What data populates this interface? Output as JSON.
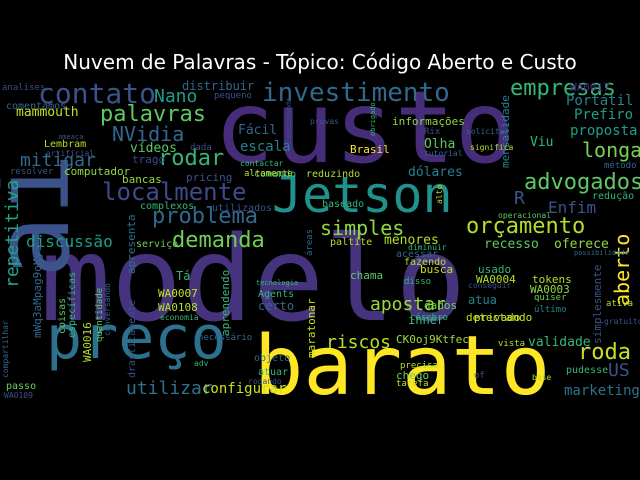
{
  "title": "Nuvem de Palavras - Tópico: Código Aberto e Custo",
  "words": [
    {
      "text": "modelo",
      "color": "#46337e"
    },
    {
      "text": "custo",
      "color": "#472c7a"
    },
    {
      "text": "ai",
      "color": "#3b528b"
    },
    {
      "text": "barato",
      "color": "#fde725"
    },
    {
      "text": "preço",
      "color": "#2c728e"
    },
    {
      "text": "Jetson",
      "color": "#21918c"
    },
    {
      "text": "investimento",
      "color": "#31688e"
    },
    {
      "text": "contato",
      "color": "#3b528b"
    },
    {
      "text": "empresas",
      "color": "#35b779"
    },
    {
      "text": "localmente",
      "color": "#3e4a89"
    },
    {
      "text": "palavras",
      "color": "#5ec962"
    },
    {
      "text": "orçamento",
      "color": "#b5de2b"
    },
    {
      "text": "advogados",
      "color": "#5ec962"
    },
    {
      "text": "problema",
      "color": "#31688e"
    },
    {
      "text": "demanda",
      "color": "#6ece58"
    },
    {
      "text": "simples",
      "color": "#90d743"
    },
    {
      "text": "rodar",
      "color": "#35b779"
    },
    {
      "text": "Nano",
      "color": "#1f9e89"
    },
    {
      "text": "NVidia",
      "color": "#31688e"
    },
    {
      "text": "repetitiva",
      "color": "#20a486"
    },
    {
      "text": "roda",
      "color": "#c8e020"
    },
    {
      "text": "aberto",
      "color": "#fde725"
    },
    {
      "text": "longa",
      "color": "#7ad151"
    },
    {
      "text": "apostar",
      "color": "#9fda3a"
    },
    {
      "text": "riscos",
      "color": "#b5de2b"
    },
    {
      "text": "utilizar",
      "color": "#2c728e"
    },
    {
      "text": "discussão",
      "color": "#1f9e89"
    },
    {
      "text": "mitigar",
      "color": "#31688e"
    },
    {
      "text": "Enfim",
      "color": "#3b528b"
    },
    {
      "text": "Portátil",
      "color": "#26828e"
    },
    {
      "text": "Prefiro",
      "color": "#1f9e89"
    },
    {
      "text": "proposta",
      "color": "#1f9e89"
    },
    {
      "text": "escala",
      "color": "#26828e"
    },
    {
      "text": "vídeos",
      "color": "#5ec962"
    },
    {
      "text": "mammouth",
      "color": "#c8e020"
    },
    {
      "text": "configurar",
      "color": "#c8e020"
    },
    {
      "text": "marketing",
      "color": "#2c728e"
    },
    {
      "text": "US",
      "color": "#3b528b"
    },
    {
      "text": "validade",
      "color": "#35b779"
    },
    {
      "text": "recesso",
      "color": "#5ec962"
    },
    {
      "text": "oferece",
      "color": "#90d743"
    },
    {
      "text": "dólares",
      "color": "#26828e"
    },
    {
      "text": "Viu",
      "color": "#35b779"
    },
    {
      "text": "Olha",
      "color": "#5ec962"
    },
    {
      "text": "menores",
      "color": "#b5de2b"
    },
    {
      "text": "chama",
      "color": "#5ec962"
    },
    {
      "text": "R",
      "color": "#3b528b"
    },
    {
      "text": "Fácil",
      "color": "#31688e"
    },
    {
      "text": "distribuir",
      "color": "#31688e"
    },
    {
      "text": "trago",
      "color": "#3e4a89"
    },
    {
      "text": "pricing",
      "color": "#3b528b"
    },
    {
      "text": "inner",
      "color": "#35b779"
    },
    {
      "text": "atua",
      "color": "#26828e"
    },
    {
      "text": "dados",
      "color": "#6ece58"
    },
    {
      "text": "bancas",
      "color": "#90d743"
    },
    {
      "text": "apresenta",
      "color": "#2c728e"
    },
    {
      "text": "aprendendo",
      "color": "#35b779"
    },
    {
      "text": "maratonar",
      "color": "#c8e020"
    },
    {
      "text": "CK0oj9Ktfec",
      "color": "#a0da39"
    },
    {
      "text": "WA0016",
      "color": "#b5de2b"
    },
    {
      "text": "mWq3aMpag9oKy1",
      "color": "#31688e"
    },
    {
      "text": "Brasil",
      "color": "#fde725"
    },
    {
      "text": "WA0017",
      "color": "#472c7a"
    },
    {
      "text": "mensalidade",
      "color": "#26828e"
    },
    {
      "text": "tokens",
      "color": "#b5de2b"
    },
    {
      "text": "WA0003",
      "color": "#90d743"
    },
    {
      "text": "WA0004",
      "color": "#b5de2b"
    },
    {
      "text": "WA0007",
      "color": "#c8e020"
    },
    {
      "text": "WA0108",
      "color": "#b5de2b"
    },
    {
      "text": "informações",
      "color": "#90d743"
    },
    {
      "text": "computador",
      "color": "#90d743"
    },
    {
      "text": "simplesmente",
      "color": "#3b528b"
    },
    {
      "text": "detectando",
      "color": "#c8e020"
    },
    {
      "text": "usado",
      "color": "#35b779"
    },
    {
      "text": "busca",
      "color": "#c8e020"
    },
    {
      "text": "privado",
      "color": "#b5de2b"
    },
    {
      "text": "certo",
      "color": "#31688e"
    },
    {
      "text": "Agents",
      "color": "#35b779"
    },
    {
      "text": "atuar",
      "color": "#35b779"
    },
    {
      "text": "objeto",
      "color": "#31688e"
    },
    {
      "text": "drasticamente",
      "color": "#3b528b"
    },
    {
      "text": "coisas",
      "color": "#5ec962"
    },
    {
      "text": "específicas",
      "color": "#35b779"
    },
    {
      "text": "serviço",
      "color": "#6ece58"
    },
    {
      "text": "paltite",
      "color": "#b5de2b"
    },
    {
      "text": "acessar",
      "color": "#31688e"
    },
    {
      "text": "fazendo",
      "color": "#b5de2b"
    },
    {
      "text": "redução",
      "color": "#35b779"
    },
    {
      "text": "reduzindo",
      "color": "#b5de2b"
    },
    {
      "text": "comando",
      "color": "#35b779"
    },
    {
      "text": "utilizados",
      "color": "#3b528b"
    },
    {
      "text": "baseado",
      "color": "#35b779"
    },
    {
      "text": "complexos",
      "color": "#35b779"
    },
    {
      "text": "comentamos",
      "color": "#31688e"
    },
    {
      "text": "analises",
      "color": "#3e4a89"
    },
    {
      "text": "Lembram",
      "color": "#b5de2b"
    },
    {
      "text": "resolver",
      "color": "#3b528b"
    },
    {
      "text": "método",
      "color": "#31688e"
    },
    {
      "text": "Rix",
      "color": "#3b528b"
    },
    {
      "text": "pudesse",
      "color": "#35b779"
    },
    {
      "text": "chego",
      "color": "#6ece58"
    },
    {
      "text": "tarefa",
      "color": "#c8e020"
    },
    {
      "text": "precisa",
      "color": "#b5de2b"
    },
    {
      "text": "cérebro",
      "color": "#35b779"
    },
    {
      "text": "vista",
      "color": "#b5de2b"
    },
    {
      "text": "quiser",
      "color": "#6ece58"
    },
    {
      "text": "último",
      "color": "#26828e"
    },
    {
      "text": "ativa",
      "color": "#b5de2b"
    },
    {
      "text": "necessário",
      "color": "#31688e"
    },
    {
      "text": "WA0109",
      "color": "#3b528b"
    },
    {
      "text": "passo",
      "color": "#6ece58"
    },
    {
      "text": "áreas",
      "color": "#31688e"
    },
    {
      "text": "disso",
      "color": "#35b779"
    },
    {
      "text": "altamente",
      "color": "#b5de2b"
    },
    {
      "text": "dada",
      "color": "#3b528b"
    },
    {
      "text": "pequeno",
      "color": "#3b528b"
    },
    {
      "text": "provas",
      "color": "#3b528b"
    },
    {
      "text": "contactar",
      "color": "#35b779"
    },
    {
      "text": "economia",
      "color": "#35b779"
    },
    {
      "text": "gratuitos",
      "color": "#3b528b"
    },
    {
      "text": "rodando",
      "color": "#3b528b"
    },
    {
      "text": "of",
      "color": "#3b528b"
    },
    {
      "text": "base",
      "color": "#b5de2b"
    },
    {
      "text": "Tá",
      "color": "#35b779"
    },
    {
      "text": "significa",
      "color": "#b5de2b"
    },
    {
      "text": "tutorial",
      "color": "#31688e"
    },
    {
      "text": "solicitar",
      "color": "#31688e"
    },
    {
      "text": "diminuir",
      "color": "#35b779"
    },
    {
      "text": "adv",
      "color": "#35b779"
    },
    {
      "text": "tecnologia",
      "color": "#35b779"
    },
    {
      "text": "conseguir",
      "color": "#3b528b"
    },
    {
      "text": "quantidade",
      "color": "#5ec962"
    },
    {
      "text": "artificial",
      "color": "#3b528b"
    },
    {
      "text": "compartilhar",
      "color": "#31688e"
    },
    {
      "text": "ameaça",
      "color": "#3b528b"
    },
    {
      "text": "conversando",
      "color": "#31688e"
    },
    {
      "text": "operacional",
      "color": "#5ec962"
    },
    {
      "text": "alto",
      "color": "#b5de2b"
    },
    {
      "text": "possibilidade",
      "color": "#31688e"
    },
    {
      "text": "obrigado",
      "color": "#35b779"
    },
    {
      "text": "funcionando",
      "color": "#3b528b"
    }
  ]
}
